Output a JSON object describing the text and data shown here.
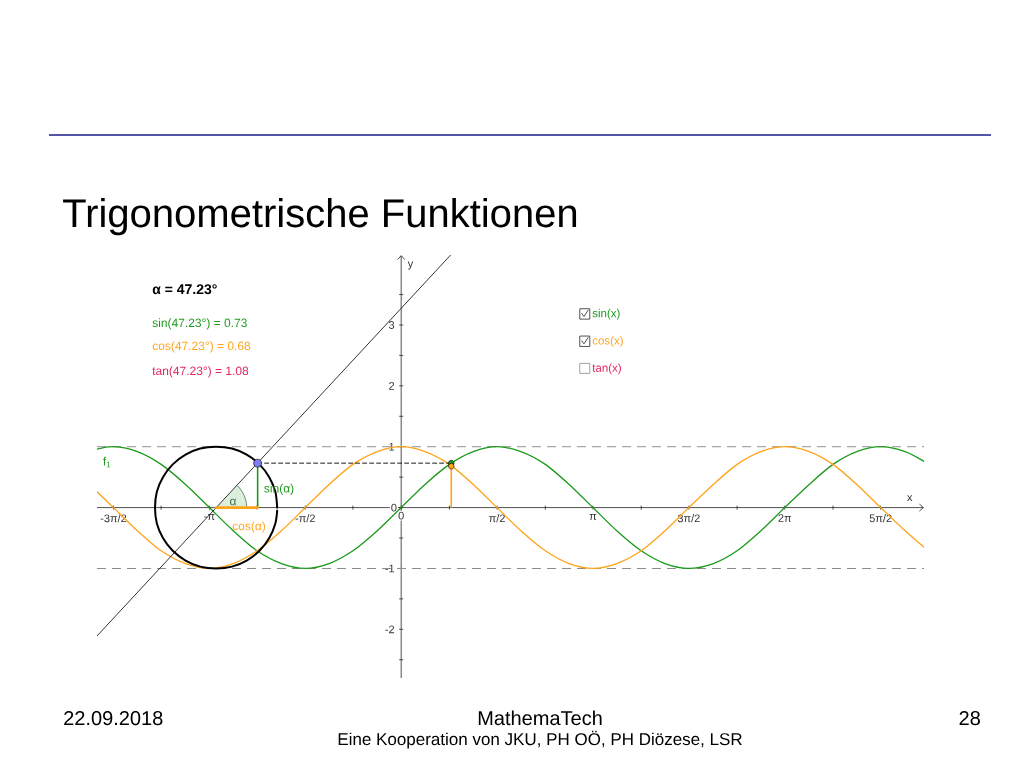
{
  "chart_data": {
    "type": "line",
    "title": "Trigonometrische Funktionen",
    "xlabel": "x",
    "ylabel": "y",
    "xlim": [
      -4.98,
      8.56
    ],
    "ylim": [
      -2.8,
      4.15
    ],
    "xticks": [
      {
        "value": -4.71,
        "label": "-3π/2"
      },
      {
        "value": -3.93,
        "label": null
      },
      {
        "value": -3.14,
        "label": "-π"
      },
      {
        "value": -2.36,
        "label": null
      },
      {
        "value": -1.57,
        "label": "-π/2"
      },
      {
        "value": -0.79,
        "label": null
      },
      0,
      {
        "value": 0.79,
        "label": null
      },
      {
        "value": 1.57,
        "label": "π/2"
      },
      {
        "value": 2.36,
        "label": null
      },
      {
        "value": 3.14,
        "label": "π"
      },
      {
        "value": 3.93,
        "label": null
      },
      {
        "value": 4.71,
        "label": "3π/2"
      },
      {
        "value": 5.5,
        "label": null
      },
      {
        "value": 6.28,
        "label": "2π"
      },
      {
        "value": 7.07,
        "label": null
      },
      {
        "value": 7.85,
        "label": "5π/2"
      }
    ],
    "yticks": [
      {
        "value": -2.5,
        "label": null
      },
      -2,
      {
        "value": -1.5,
        "label": null
      },
      -1,
      {
        "value": -0.5,
        "label": null
      },
      0,
      {
        "value": 0.5,
        "label": null
      },
      1,
      {
        "value": 1.5,
        "label": null
      },
      2,
      {
        "value": 2.5,
        "label": null
      },
      3,
      {
        "value": 3.5,
        "label": null
      }
    ],
    "x": [
      -4.98,
      -4.71,
      -4.32,
      -3.93,
      -3.53,
      -3.14,
      -2.75,
      -2.36,
      -1.96,
      -1.57,
      -1.18,
      -0.79,
      -0.39,
      0,
      0.39,
      0.79,
      1.18,
      1.57,
      1.96,
      2.36,
      2.75,
      3.14,
      3.53,
      3.93,
      4.32,
      4.71,
      5.11,
      5.5,
      5.89,
      6.28,
      6.68,
      7.07,
      7.46,
      7.85,
      8.25,
      8.56
    ],
    "series": [
      {
        "name": "sin(x)",
        "color": "#1a9a1a",
        "values": [
          0.96,
          1,
          0.92,
          0.71,
          0.38,
          0,
          -0.38,
          -0.71,
          -0.92,
          -1,
          -0.92,
          -0.71,
          -0.38,
          0,
          0.38,
          0.71,
          0.92,
          1,
          0.92,
          0.71,
          0.38,
          0,
          -0.38,
          -0.71,
          -0.92,
          -1,
          -0.92,
          -0.71,
          -0.38,
          0,
          0.38,
          0.71,
          0.92,
          1,
          0.92,
          0.76
        ]
      },
      {
        "name": "cos(x)",
        "color": "#ffa31a",
        "values": [
          0.26,
          0,
          -0.38,
          -0.71,
          -0.92,
          -1,
          -0.92,
          -0.71,
          -0.38,
          0,
          0.38,
          0.71,
          0.92,
          1,
          0.92,
          0.71,
          0.38,
          0,
          -0.38,
          -0.71,
          -0.92,
          -1,
          -0.92,
          -0.71,
          -0.38,
          0,
          0.38,
          0.71,
          0.92,
          1,
          0.92,
          0.71,
          0.38,
          0,
          -0.38,
          -0.65
        ]
      },
      {
        "color": "#000000",
        "x": [
          -2.03,
          -2.06,
          -2.16,
          -2.32,
          -2.53,
          -2.77,
          -3.03,
          -3.29,
          -3.53,
          -3.74,
          -3.9,
          -4,
          -4.03,
          -4,
          -3.9,
          -3.74,
          -3.53,
          -3.29,
          -3.03,
          -2.77,
          -2.53,
          -2.32,
          -2.16,
          -2.06,
          -2.03
        ],
        "values": [
          0,
          0.26,
          0.5,
          0.71,
          0.87,
          0.97,
          1,
          0.97,
          0.87,
          0.71,
          0.5,
          0.26,
          0,
          -0.26,
          -0.5,
          -0.71,
          -0.87,
          -0.97,
          -1,
          -0.97,
          -0.87,
          -0.71,
          -0.5,
          -0.26,
          -0.05
        ]
      },
      {
        "color": "#000000",
        "x": [
          -4.98,
          0.81
        ],
        "values": [
          -2.11,
          4.15
        ]
      },
      {
        "color": "#000000",
        "line_style": "dashed",
        "x": [
          -2.35,
          0.82
        ],
        "values": [
          0.73,
          0.73
        ]
      },
      {
        "color": "#1a9a1a",
        "x": [
          -2.35,
          -2.35
        ],
        "values": [
          0,
          0.73
        ]
      },
      {
        "color": "#ffa31a",
        "x": [
          -3.03,
          -2.35
        ],
        "values": [
          0,
          0
        ]
      },
      {
        "type": "scatter",
        "color": "#7d7df5",
        "marker": "circle",
        "x": [
          -2.35
        ],
        "values": [
          0.73
        ]
      },
      {
        "type": "scatter",
        "color": "#1a9a1a",
        "marker": "circle",
        "x": [
          0.82
        ],
        "values": [
          0.73
        ]
      },
      {
        "type": "lollipop",
        "color": "#ffa31a",
        "marker": "circle",
        "x": [
          0.82
        ],
        "values": [
          0.68
        ]
      }
    ],
    "ref_lines": [
      {
        "axis": "y",
        "value": 1,
        "color": "#8c8c8c",
        "line_style": "dashed"
      },
      {
        "axis": "y",
        "value": -1,
        "color": "#8c8c8c",
        "line_style": "dashed"
      }
    ],
    "legend": "top right",
    "annotations": [
      "α = 47.23°",
      "sin(47.23°) = 0.73",
      "cos(47.23°) = 0.68",
      "tan(47.23°) = 1.08",
      "tan(x)",
      "f$_{1}$",
      {
        "text": "sin(α)",
        "x": -2.0,
        "y": 0.3
      },
      "cos(α)",
      "α",
      "MathemaTech",
      "Eine Kooperation von JKU, PH OÖ, PH Diözese, LSR",
      "22.09.2018",
      "28"
    ]
  }
}
